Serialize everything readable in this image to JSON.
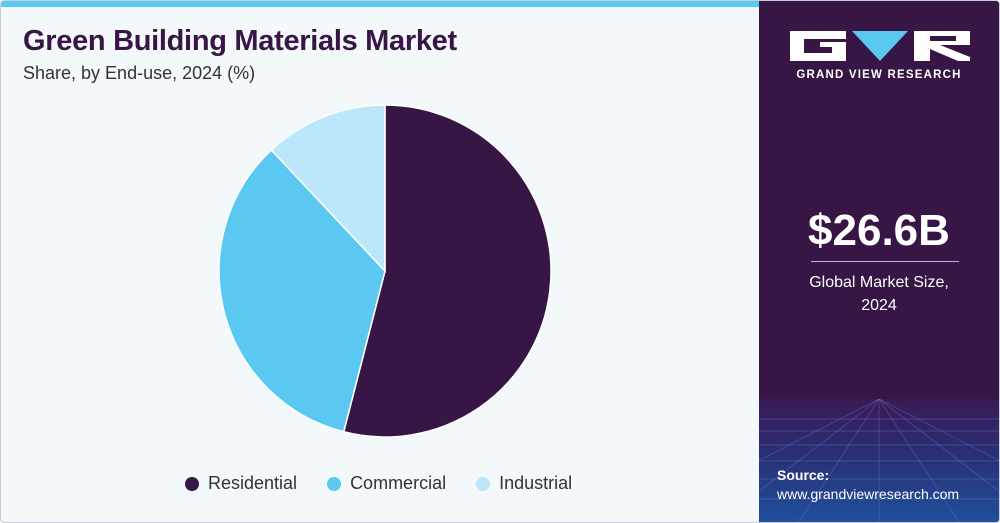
{
  "title": "Green Building Materials Market",
  "subtitle": "Share, by End-use, 2024 (%)",
  "colors": {
    "Residential": "#371544",
    "Commercial": "#5bc8f2",
    "Industrial": "#bce7fa",
    "accent_bar": "#5bc8f2",
    "sidebar": "#371544"
  },
  "chart_data": {
    "type": "pie",
    "title": "Green Building Materials Market",
    "subtitle": "Share, by End-use, 2024 (%)",
    "categories": [
      "Residential",
      "Commercial",
      "Industrial"
    ],
    "values": [
      54,
      34,
      12
    ],
    "legend_position": "bottom"
  },
  "sidebar": {
    "brand": "GRAND VIEW RESEARCH",
    "logo_icon": "gvr-logo-icon",
    "market_size": "$26.6B",
    "market_caption": "Global Market Size, 2024",
    "source_label": "Source:",
    "source_url": "www.grandviewresearch.com"
  }
}
